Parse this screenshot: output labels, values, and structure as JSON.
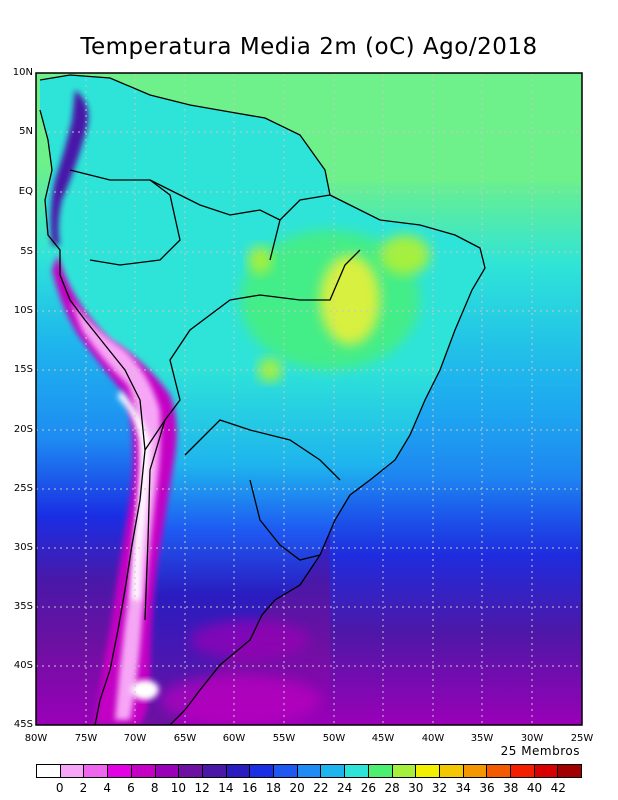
{
  "title": "Temperatura Media 2m (oC) Ago/2018",
  "members_label": "25 Membros",
  "lat_labels": [
    "10N",
    "5N",
    "EQ",
    "5S",
    "10S",
    "15S",
    "20S",
    "25S",
    "30S",
    "35S",
    "40S",
    "45S"
  ],
  "lon_labels": [
    "80W",
    "75W",
    "70W",
    "65W",
    "60W",
    "55W",
    "50W",
    "45W",
    "40W",
    "35W",
    "30W",
    "25W"
  ],
  "colorbar": {
    "labels": [
      "0",
      "2",
      "4",
      "6",
      "8",
      "10",
      "12",
      "14",
      "16",
      "18",
      "20",
      "22",
      "24",
      "26",
      "28",
      "30",
      "32",
      "34",
      "36",
      "38",
      "40",
      "42"
    ],
    "colors": [
      "#ffffff",
      "#f7a6f7",
      "#ee66ee",
      "#e400e4",
      "#c400c4",
      "#9a00b8",
      "#6e10a2",
      "#4a18a8",
      "#2a1cc0",
      "#1a2ee4",
      "#1e5af2",
      "#1e8cf2",
      "#1eb4ee",
      "#2ee4d8",
      "#4cf06e",
      "#a4f03c",
      "#f0f000",
      "#f4c800",
      "#f49600",
      "#f45a00",
      "#f41e00",
      "#d80000",
      "#a20000"
    ]
  },
  "map": {
    "ocean_north_color": "#6ef08a",
    "ocean_subtropical_color": "#1ea8f0",
    "andes_color": "#e400e4",
    "andes_peak_color": "#ffffff",
    "amazon_color": "#2ee4d8",
    "hot_spot_color": "#d8f040"
  }
}
